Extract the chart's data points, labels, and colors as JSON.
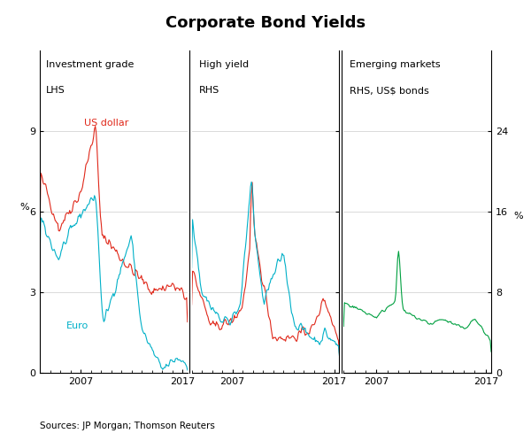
{
  "title": "Corporate Bond Yields",
  "source": "Sources: JP Morgan; Thomson Reuters",
  "left_ylabel": "%",
  "right_ylabel": "%",
  "panel1_label1": "Investment grade",
  "panel1_label2": "LHS",
  "panel2_label1": "High yield",
  "panel2_label2": "RHS",
  "panel3_label1": "Emerging markets",
  "panel3_label2": "RHS, US$ bonds",
  "lhs_ylim": [
    0,
    12
  ],
  "lhs_yticks": [
    0,
    3,
    6,
    9
  ],
  "rhs_ylim": [
    0,
    32
  ],
  "rhs_yticks": [
    0,
    8,
    16,
    24
  ],
  "color_usd": "#e0281a",
  "color_euro": "#00b0c8",
  "color_em": "#00a040",
  "label_usd": "US dollar",
  "label_euro": "Euro",
  "background_color": "#ffffff",
  "grid_color": "#cccccc"
}
